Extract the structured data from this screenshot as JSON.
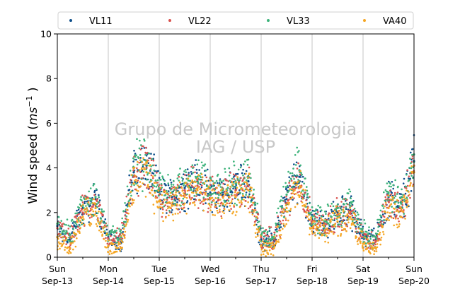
{
  "chart_data": {
    "type": "scatter",
    "title": "",
    "ylabel": "Wind speed (ms⁻¹ )",
    "ylabel_parts": {
      "pre": "Wind speed (",
      "unit": "ms",
      "exp": "−1",
      "post": " )"
    },
    "xlabel": "",
    "ylim": [
      0,
      10
    ],
    "yticks": [
      "0",
      "2",
      "4",
      "6",
      "8",
      "10"
    ],
    "xlim": [
      "2020-09-13",
      "2020-09-20"
    ],
    "xticks": [
      {
        "day": "Sun",
        "date": "Sep-13"
      },
      {
        "day": "Mon",
        "date": "Sep-14"
      },
      {
        "day": "Tue",
        "date": "Sep-15"
      },
      {
        "day": "Wed",
        "date": "Sep-16"
      },
      {
        "day": "Thu",
        "date": "Sep-17"
      },
      {
        "day": "Fri",
        "date": "Sep-18"
      },
      {
        "day": "Sat",
        "date": "Sep-19"
      },
      {
        "day": "Sun",
        "date": "Sep-20"
      }
    ],
    "grid": "vertical",
    "legend_position": "top",
    "watermark": [
      "Grupo de Micrometeorologia",
      "IAG / USP"
    ],
    "series": [
      {
        "name": "VL11",
        "color": "#0d4e8a",
        "x": [
          "2020-09-13 00:00",
          "2020-09-13 06:00",
          "2020-09-13 12:00",
          "2020-09-13 18:00",
          "2020-09-14 00:00",
          "2020-09-14 06:00",
          "2020-09-14 12:00",
          "2020-09-14 18:00",
          "2020-09-15 00:00",
          "2020-09-15 06:00",
          "2020-09-15 12:00",
          "2020-09-15 18:00",
          "2020-09-16 00:00",
          "2020-09-16 06:00",
          "2020-09-16 12:00",
          "2020-09-16 18:00",
          "2020-09-17 00:00",
          "2020-09-17 06:00",
          "2020-09-17 12:00",
          "2020-09-17 18:00",
          "2020-09-18 00:00",
          "2020-09-18 06:00",
          "2020-09-18 12:00",
          "2020-09-18 18:00",
          "2020-09-19 00:00",
          "2020-09-19 06:00",
          "2020-09-19 12:00",
          "2020-09-19 18:00",
          "2020-09-20 00:00"
        ],
        "y": [
          1.4,
          0.8,
          2.2,
          2.6,
          0.9,
          0.7,
          3.8,
          4.1,
          3.0,
          2.7,
          3.1,
          3.4,
          2.9,
          2.8,
          3.1,
          3.4,
          0.8,
          0.7,
          2.6,
          3.6,
          1.7,
          1.4,
          2.0,
          2.1,
          1.0,
          0.8,
          2.7,
          2.2,
          4.3
        ]
      },
      {
        "name": "VL22",
        "color": "#d9534f",
        "x": [
          "2020-09-13 00:00",
          "2020-09-13 06:00",
          "2020-09-13 12:00",
          "2020-09-13 18:00",
          "2020-09-14 00:00",
          "2020-09-14 06:00",
          "2020-09-14 12:00",
          "2020-09-14 18:00",
          "2020-09-15 00:00",
          "2020-09-15 06:00",
          "2020-09-15 12:00",
          "2020-09-15 18:00",
          "2020-09-16 00:00",
          "2020-09-16 06:00",
          "2020-09-16 12:00",
          "2020-09-16 18:00",
          "2020-09-17 00:00",
          "2020-09-17 06:00",
          "2020-09-17 12:00",
          "2020-09-17 18:00",
          "2020-09-18 00:00",
          "2020-09-18 06:00",
          "2020-09-18 12:00",
          "2020-09-18 18:00",
          "2020-09-19 00:00",
          "2020-09-19 06:00",
          "2020-09-19 12:00",
          "2020-09-19 18:00",
          "2020-09-20 00:00"
        ],
        "y": [
          1.3,
          0.9,
          2.0,
          2.4,
          0.8,
          0.8,
          3.6,
          4.0,
          2.8,
          2.6,
          3.0,
          3.2,
          2.8,
          2.7,
          3.0,
          3.2,
          0.9,
          0.8,
          2.4,
          3.4,
          1.6,
          1.5,
          1.9,
          2.0,
          0.9,
          0.7,
          2.5,
          2.1,
          4.1
        ]
      },
      {
        "name": "VL33",
        "color": "#3cb37a",
        "x": [
          "2020-09-13 00:00",
          "2020-09-13 06:00",
          "2020-09-13 12:00",
          "2020-09-13 18:00",
          "2020-09-14 00:00",
          "2020-09-14 06:00",
          "2020-09-14 12:00",
          "2020-09-14 18:00",
          "2020-09-15 00:00",
          "2020-09-15 06:00",
          "2020-09-15 12:00",
          "2020-09-15 18:00",
          "2020-09-16 00:00",
          "2020-09-16 06:00",
          "2020-09-16 12:00",
          "2020-09-16 18:00",
          "2020-09-17 00:00",
          "2020-09-17 06:00",
          "2020-09-17 12:00",
          "2020-09-17 18:00",
          "2020-09-18 00:00",
          "2020-09-18 06:00",
          "2020-09-18 12:00",
          "2020-09-18 18:00",
          "2020-09-19 00:00",
          "2020-09-19 06:00",
          "2020-09-19 12:00",
          "2020-09-19 18:00",
          "2020-09-20 00:00"
        ],
        "y": [
          1.5,
          1.0,
          2.3,
          2.7,
          1.0,
          0.9,
          4.0,
          4.3,
          3.1,
          2.9,
          3.3,
          3.6,
          3.1,
          3.0,
          3.3,
          3.6,
          1.0,
          0.9,
          2.8,
          3.9,
          1.8,
          1.6,
          2.2,
          2.3,
          1.1,
          0.9,
          2.9,
          2.4,
          4.6
        ]
      },
      {
        "name": "VA40",
        "color": "#f5a623",
        "x": [
          "2020-09-13 00:00",
          "2020-09-13 06:00",
          "2020-09-13 12:00",
          "2020-09-13 18:00",
          "2020-09-14 00:00",
          "2020-09-14 06:00",
          "2020-09-14 12:00",
          "2020-09-14 18:00",
          "2020-09-15 00:00",
          "2020-09-15 06:00",
          "2020-09-15 12:00",
          "2020-09-15 18:00",
          "2020-09-16 00:00",
          "2020-09-16 06:00",
          "2020-09-16 12:00",
          "2020-09-16 18:00",
          "2020-09-17 00:00",
          "2020-09-17 06:00",
          "2020-09-17 12:00",
          "2020-09-17 18:00",
          "2020-09-18 00:00",
          "2020-09-18 06:00",
          "2020-09-18 12:00",
          "2020-09-18 18:00",
          "2020-09-19 00:00",
          "2020-09-19 06:00",
          "2020-09-19 12:00",
          "2020-09-19 18:00",
          "2020-09-20 00:00"
        ],
        "y": [
          0.9,
          0.4,
          1.8,
          2.2,
          0.5,
          0.4,
          3.3,
          3.8,
          2.5,
          2.3,
          2.7,
          3.0,
          2.6,
          2.4,
          2.7,
          3.0,
          0.5,
          0.4,
          2.2,
          3.1,
          1.3,
          1.2,
          1.6,
          1.8,
          0.6,
          0.4,
          2.2,
          1.8,
          3.8
        ]
      }
    ]
  }
}
